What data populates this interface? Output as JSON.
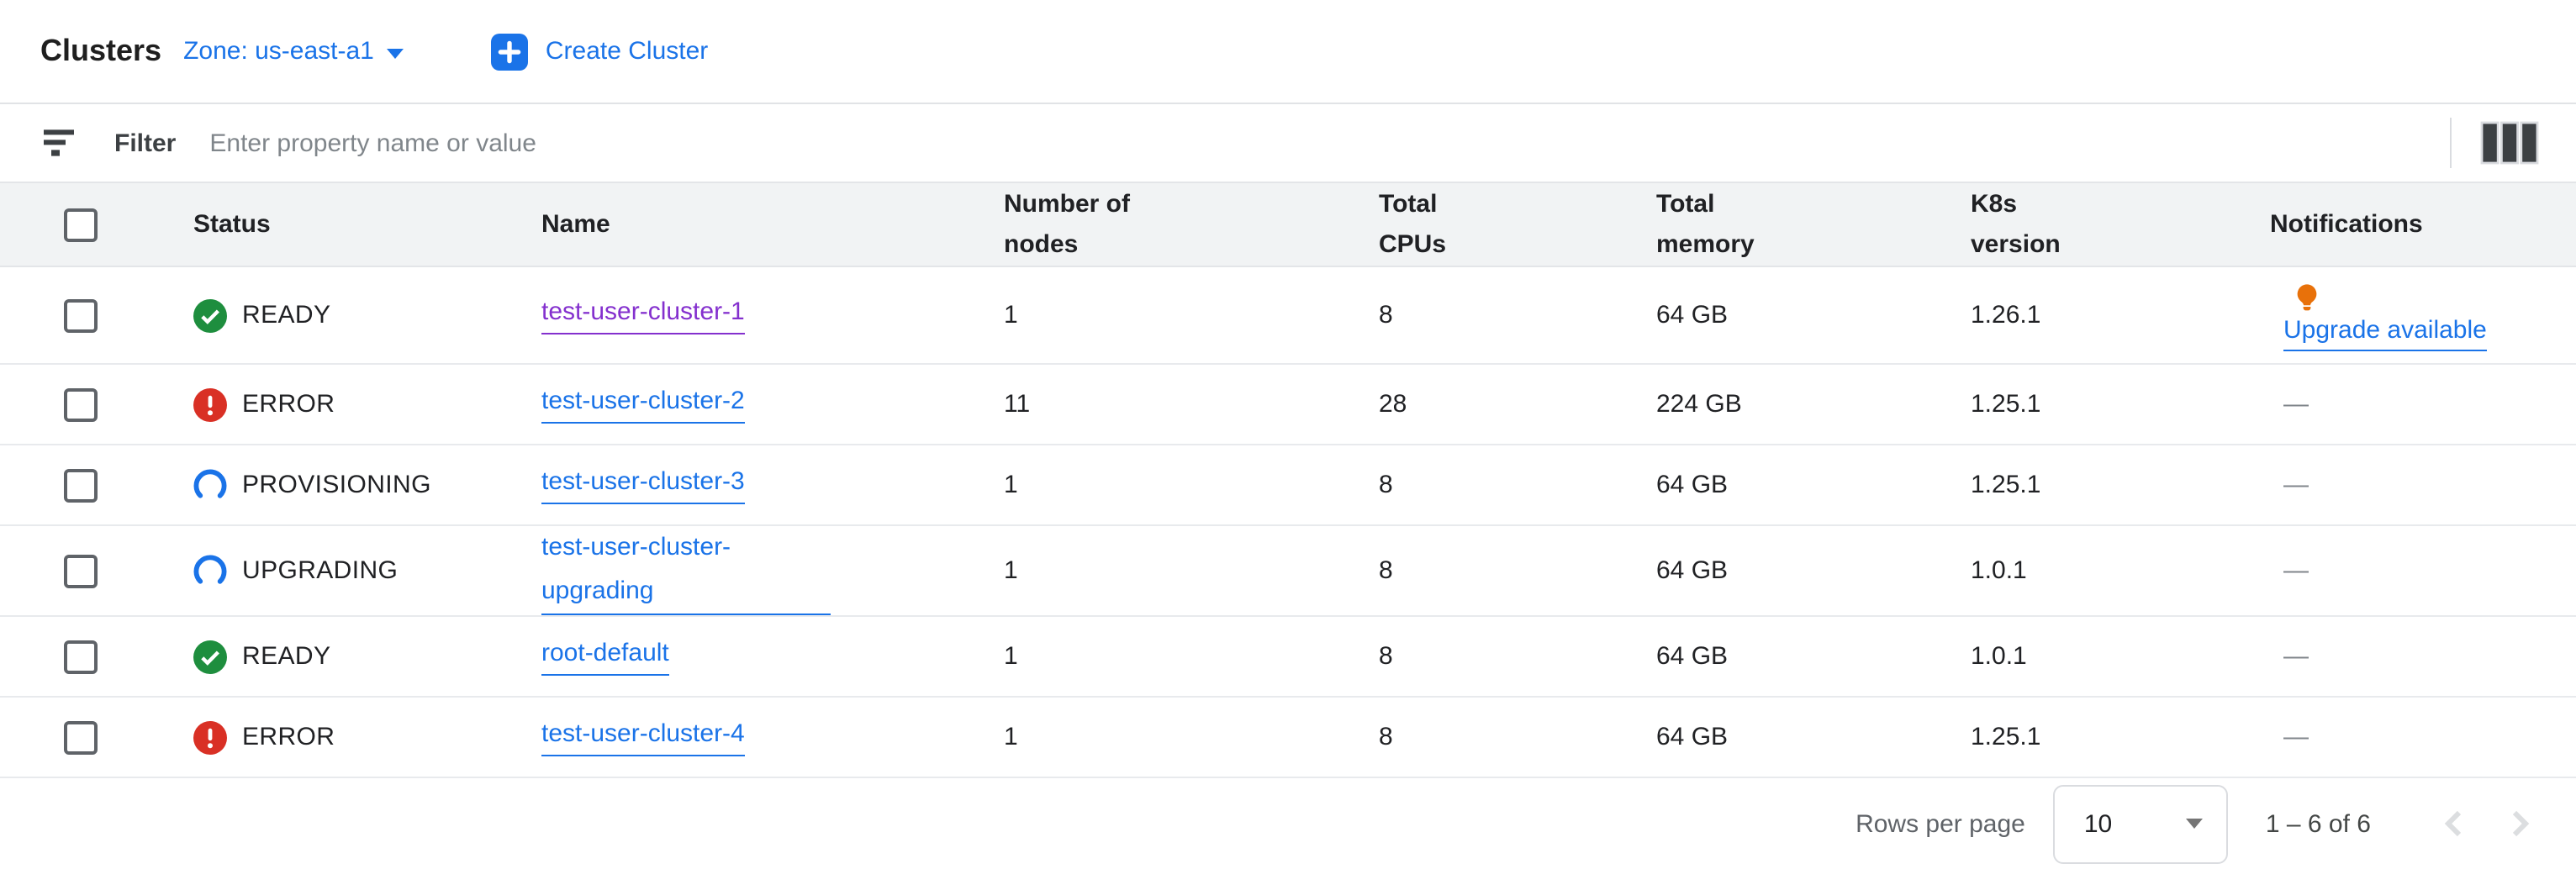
{
  "header": {
    "title": "Clusters",
    "zone_label": "Zone: us-east-a1",
    "create_button_label": "Create Cluster"
  },
  "filter_bar": {
    "label": "Filter",
    "placeholder": "Enter property name or value"
  },
  "table": {
    "columns": [
      "Status",
      "Name",
      "Number of\nnodes",
      "Total\nCPUs",
      "Total\nmemory",
      "K8s\nversion",
      "Notifications"
    ],
    "empty_value": "—",
    "rows": [
      {
        "status": "READY",
        "status_icon": "check-circle",
        "name": "test-user-cluster-1",
        "name_visited": true,
        "nodes": "1",
        "cpus": "8",
        "memory": "64 GB",
        "k8s_version": "1.26.1",
        "notification": "Upgrade available",
        "notification_icon": "lightbulb"
      },
      {
        "status": "ERROR",
        "status_icon": "error-circle",
        "name": "test-user-cluster-2",
        "nodes": "11",
        "cpus": "28",
        "memory": "224 GB",
        "k8s_version": "1.25.1",
        "notification": null
      },
      {
        "status": "PROVISIONING",
        "status_icon": "progress-arc",
        "name": "test-user-cluster-3",
        "nodes": "1",
        "cpus": "8",
        "memory": "64 GB",
        "k8s_version": "1.25.1",
        "notification": null
      },
      {
        "status": "UPGRADING",
        "status_icon": "progress-arc",
        "name": "test-user-cluster-upgrading",
        "name_wrap": true,
        "nodes": "1",
        "cpus": "8",
        "memory": "64 GB",
        "k8s_version": "1.0.1",
        "notification": null
      },
      {
        "status": "READY",
        "status_icon": "check-circle",
        "name": "root-default",
        "nodes": "1",
        "cpus": "8",
        "memory": "64 GB",
        "k8s_version": "1.0.1",
        "notification": null
      },
      {
        "status": "ERROR",
        "status_icon": "error-circle",
        "name": "test-user-cluster-4",
        "nodes": "1",
        "cpus": "8",
        "memory": "64 GB",
        "k8s_version": "1.25.1",
        "notification": null
      }
    ]
  },
  "pagination": {
    "rows_per_page_label": "Rows per page",
    "rows_per_page_value": "10",
    "range_text": "1 – 6 of 6"
  },
  "colors": {
    "blue": "#1a73e8",
    "green": "#1e8e3e",
    "red": "#d93025",
    "orange": "#e8710a",
    "purple": "#8430ce",
    "text": "#202124",
    "text-secondary": "#5f6368",
    "muted": "#80868b",
    "border": "#dadce0",
    "row-border": "#e8eaed",
    "header-bg": "#f1f3f4"
  }
}
